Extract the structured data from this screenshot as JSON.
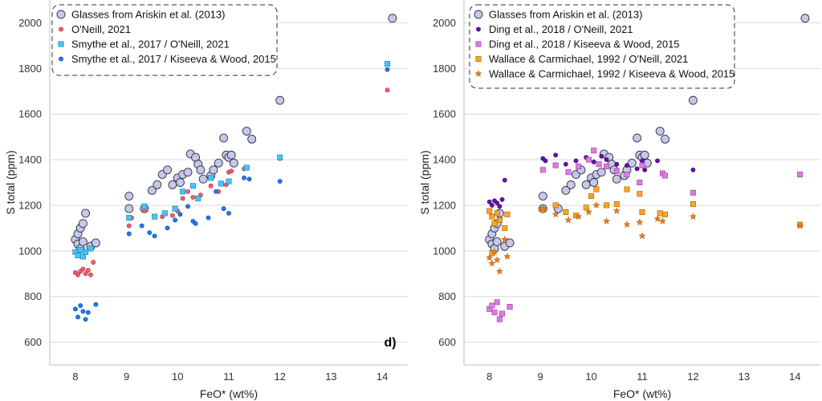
{
  "chart_data": [
    {
      "type": "scatter",
      "panel_label": "d)",
      "xlabel": "FeO* (wt%)",
      "ylabel": "S total (ppm)",
      "xlim": [
        7.5,
        14.5
      ],
      "ylim": [
        500,
        2100
      ],
      "xticks": [
        "8",
        "9",
        "10",
        "11",
        "12",
        "13",
        "14"
      ],
      "yticks": [
        "600",
        "800",
        "1000",
        "1200",
        "1400",
        "1600",
        "1800",
        "2000"
      ],
      "grid": "horizontal",
      "legend_position": "top-left",
      "series": [
        {
          "name": "Glasses from Ariskin et al. (2013)",
          "marker": "large-circle",
          "color": "#c5c8e8",
          "points": [
            [
              8.0,
              1050
            ],
            [
              8.05,
              1075
            ],
            [
              8.1,
              1100
            ],
            [
              8.15,
              1120
            ],
            [
              8.2,
              1165
            ],
            [
              8.05,
              1030
            ],
            [
              8.1,
              1010
            ],
            [
              8.15,
              1040
            ],
            [
              8.3,
              1020
            ],
            [
              8.4,
              1035
            ],
            [
              9.05,
              1185
            ],
            [
              9.05,
              1240
            ],
            [
              9.35,
              1185
            ],
            [
              9.5,
              1265
            ],
            [
              9.6,
              1290
            ],
            [
              9.7,
              1335
            ],
            [
              9.8,
              1355
            ],
            [
              9.9,
              1290
            ],
            [
              10.0,
              1320
            ],
            [
              10.05,
              1300
            ],
            [
              10.1,
              1335
            ],
            [
              10.2,
              1345
            ],
            [
              10.25,
              1425
            ],
            [
              10.35,
              1410
            ],
            [
              10.4,
              1380
            ],
            [
              10.45,
              1355
            ],
            [
              10.5,
              1315
            ],
            [
              10.65,
              1330
            ],
            [
              10.7,
              1355
            ],
            [
              10.8,
              1385
            ],
            [
              10.9,
              1495
            ],
            [
              10.95,
              1420
            ],
            [
              11.0,
              1410
            ],
            [
              11.05,
              1420
            ],
            [
              11.1,
              1385
            ],
            [
              11.35,
              1525
            ],
            [
              11.45,
              1490
            ],
            [
              12.0,
              1660
            ],
            [
              14.2,
              2020
            ]
          ]
        },
        {
          "name": "O'Neill, 2021",
          "marker": "small-circle",
          "color": "#ff5a6e",
          "points": [
            [
              8.0,
              905
            ],
            [
              8.05,
              895
            ],
            [
              8.1,
              910
            ],
            [
              8.15,
              920
            ],
            [
              8.2,
              900
            ],
            [
              8.25,
              915
            ],
            [
              8.3,
              895
            ],
            [
              8.35,
              950
            ],
            [
              9.05,
              1110
            ],
            [
              9.1,
              1145
            ],
            [
              9.35,
              1175
            ],
            [
              9.55,
              1150
            ],
            [
              9.7,
              1150
            ],
            [
              9.9,
              1155
            ],
            [
              10.0,
              1175
            ],
            [
              10.1,
              1230
            ],
            [
              10.2,
              1260
            ],
            [
              10.3,
              1235
            ],
            [
              10.45,
              1245
            ],
            [
              10.65,
              1285
            ],
            [
              10.8,
              1260
            ],
            [
              10.95,
              1290
            ],
            [
              11.0,
              1345
            ],
            [
              11.05,
              1350
            ],
            [
              11.3,
              1360
            ],
            [
              12.0,
              1405
            ],
            [
              14.1,
              1705
            ]
          ]
        },
        {
          "name": "Smythe et al., 2017 / O'Neill, 2021",
          "marker": "square",
          "color": "#3ec8ff",
          "points": [
            [
              8.0,
              995
            ],
            [
              8.05,
              980
            ],
            [
              8.1,
              1005
            ],
            [
              8.15,
              975
            ],
            [
              8.2,
              995
            ],
            [
              8.3,
              1010
            ],
            [
              9.05,
              1145
            ],
            [
              9.35,
              1195
            ],
            [
              9.55,
              1150
            ],
            [
              9.75,
              1165
            ],
            [
              9.95,
              1185
            ],
            [
              10.1,
              1260
            ],
            [
              10.3,
              1285
            ],
            [
              10.4,
              1230
            ],
            [
              10.65,
              1320
            ],
            [
              10.85,
              1295
            ],
            [
              11.0,
              1305
            ],
            [
              11.35,
              1365
            ],
            [
              12.0,
              1410
            ],
            [
              14.1,
              1820
            ]
          ]
        },
        {
          "name": "Smythe et al., 2017 / Kiseeva & Wood, 2015",
          "marker": "small-circle",
          "color": "#1e78ff",
          "points": [
            [
              8.0,
              745
            ],
            [
              8.05,
              710
            ],
            [
              8.1,
              760
            ],
            [
              8.15,
              735
            ],
            [
              8.2,
              700
            ],
            [
              8.25,
              730
            ],
            [
              8.4,
              765
            ],
            [
              9.05,
              1075
            ],
            [
              9.3,
              1110
            ],
            [
              9.45,
              1080
            ],
            [
              9.55,
              1065
            ],
            [
              9.8,
              1100
            ],
            [
              9.95,
              1135
            ],
            [
              10.05,
              1160
            ],
            [
              10.2,
              1195
            ],
            [
              10.3,
              1130
            ],
            [
              10.35,
              1120
            ],
            [
              10.6,
              1145
            ],
            [
              10.75,
              1260
            ],
            [
              10.9,
              1185
            ],
            [
              11.0,
              1165
            ],
            [
              11.3,
              1320
            ],
            [
              11.4,
              1315
            ],
            [
              12.0,
              1305
            ],
            [
              14.1,
              1795
            ]
          ]
        }
      ]
    },
    {
      "type": "scatter",
      "xlabel": "FeO* (wt%)",
      "ylabel": "S total (ppm)",
      "xlim": [
        7.5,
        14.5
      ],
      "ylim": [
        500,
        2100
      ],
      "xticks": [
        "8",
        "9",
        "10",
        "11",
        "12",
        "13",
        "14"
      ],
      "yticks": [
        "600",
        "800",
        "1000",
        "1200",
        "1400",
        "1600",
        "1800",
        "2000"
      ],
      "grid": "horizontal",
      "legend_position": "top-left",
      "series": [
        {
          "name": "Glasses from Ariskin et al. (2013)",
          "marker": "large-circle",
          "color": "#c5c8e8",
          "points": [
            [
              8.0,
              1050
            ],
            [
              8.05,
              1075
            ],
            [
              8.1,
              1100
            ],
            [
              8.15,
              1120
            ],
            [
              8.2,
              1165
            ],
            [
              8.05,
              1030
            ],
            [
              8.1,
              1010
            ],
            [
              8.15,
              1040
            ],
            [
              8.3,
              1020
            ],
            [
              8.4,
              1035
            ],
            [
              9.05,
              1185
            ],
            [
              9.05,
              1240
            ],
            [
              9.35,
              1185
            ],
            [
              9.5,
              1265
            ],
            [
              9.6,
              1290
            ],
            [
              9.7,
              1335
            ],
            [
              9.8,
              1355
            ],
            [
              9.9,
              1290
            ],
            [
              10.0,
              1320
            ],
            [
              10.05,
              1300
            ],
            [
              10.1,
              1335
            ],
            [
              10.2,
              1345
            ],
            [
              10.25,
              1425
            ],
            [
              10.35,
              1410
            ],
            [
              10.4,
              1380
            ],
            [
              10.45,
              1355
            ],
            [
              10.5,
              1315
            ],
            [
              10.65,
              1330
            ],
            [
              10.7,
              1355
            ],
            [
              10.8,
              1385
            ],
            [
              10.9,
              1495
            ],
            [
              10.95,
              1420
            ],
            [
              11.0,
              1410
            ],
            [
              11.05,
              1420
            ],
            [
              11.1,
              1385
            ],
            [
              11.35,
              1525
            ],
            [
              11.45,
              1490
            ],
            [
              12.0,
              1660
            ],
            [
              14.2,
              2020
            ]
          ]
        },
        {
          "name": "Ding et al., 2018 / O'Neill, 2021",
          "marker": "small-circle",
          "color": "#6a0dad",
          "points": [
            [
              8.0,
              1215
            ],
            [
              8.05,
              1200
            ],
            [
              8.1,
              1220
            ],
            [
              8.15,
              1210
            ],
            [
              8.2,
              1195
            ],
            [
              8.25,
              1225
            ],
            [
              8.3,
              1310
            ],
            [
              9.05,
              1405
            ],
            [
              9.1,
              1395
            ],
            [
              9.3,
              1420
            ],
            [
              9.5,
              1380
            ],
            [
              9.7,
              1395
            ],
            [
              9.9,
              1410
            ],
            [
              10.05,
              1390
            ],
            [
              10.2,
              1415
            ],
            [
              10.3,
              1400
            ],
            [
              10.5,
              1380
            ],
            [
              10.7,
              1375
            ],
            [
              10.9,
              1360
            ],
            [
              11.0,
              1395
            ],
            [
              11.05,
              1355
            ],
            [
              11.3,
              1395
            ],
            [
              12.0,
              1355
            ]
          ]
        },
        {
          "name": "Ding et al., 2018 / Kiseeva & Wood, 2015",
          "marker": "square",
          "color": "#e277e8",
          "points": [
            [
              8.0,
              745
            ],
            [
              8.05,
              760
            ],
            [
              8.1,
              730
            ],
            [
              8.15,
              775
            ],
            [
              8.2,
              700
            ],
            [
              8.25,
              725
            ],
            [
              8.4,
              755
            ],
            [
              9.05,
              1355
            ],
            [
              9.3,
              1375
            ],
            [
              9.55,
              1345
            ],
            [
              9.75,
              1370
            ],
            [
              9.95,
              1400
            ],
            [
              10.05,
              1440
            ],
            [
              10.15,
              1380
            ],
            [
              10.3,
              1370
            ],
            [
              10.5,
              1350
            ],
            [
              10.7,
              1335
            ],
            [
              10.95,
              1300
            ],
            [
              11.0,
              1375
            ],
            [
              11.4,
              1340
            ],
            [
              11.45,
              1330
            ],
            [
              12.0,
              1255
            ],
            [
              14.1,
              1335
            ]
          ]
        },
        {
          "name": "Wallace & Carmichael, 1992 / O'Neill, 2021",
          "marker": "square",
          "color": "#ffa51e",
          "points": [
            [
              8.0,
              1175
            ],
            [
              8.05,
              1150
            ],
            [
              8.1,
              1120
            ],
            [
              8.15,
              1165
            ],
            [
              8.2,
              1135
            ],
            [
              8.3,
              1100
            ],
            [
              8.35,
              1160
            ],
            [
              8.05,
              990
            ],
            [
              9.05,
              1180
            ],
            [
              9.3,
              1200
            ],
            [
              9.5,
              1170
            ],
            [
              9.7,
              1155
            ],
            [
              9.9,
              1190
            ],
            [
              10.0,
              1240
            ],
            [
              10.1,
              1270
            ],
            [
              10.3,
              1200
            ],
            [
              10.5,
              1205
            ],
            [
              10.7,
              1270
            ],
            [
              10.95,
              1250
            ],
            [
              11.0,
              1170
            ],
            [
              11.35,
              1165
            ],
            [
              11.45,
              1160
            ],
            [
              12.0,
              1205
            ],
            [
              14.1,
              1115
            ]
          ]
        },
        {
          "name": "Wallace & Carmichael, 1992 / Kiseeva & Wood, 2015",
          "marker": "star",
          "color": "#f07a10",
          "points": [
            [
              8.0,
              970
            ],
            [
              8.05,
              945
            ],
            [
              8.1,
              995
            ],
            [
              8.15,
              960
            ],
            [
              8.2,
              910
            ],
            [
              8.3,
              1050
            ],
            [
              8.35,
              975
            ],
            [
              9.05,
              1185
            ],
            [
              9.3,
              1160
            ],
            [
              9.55,
              1135
            ],
            [
              9.75,
              1150
            ],
            [
              9.95,
              1170
            ],
            [
              10.1,
              1200
            ],
            [
              10.3,
              1130
            ],
            [
              10.5,
              1175
            ],
            [
              10.7,
              1115
            ],
            [
              10.95,
              1125
            ],
            [
              11.0,
              1065
            ],
            [
              11.3,
              1140
            ],
            [
              11.4,
              1130
            ],
            [
              12.0,
              1150
            ],
            [
              14.1,
              1110
            ]
          ]
        }
      ]
    }
  ]
}
